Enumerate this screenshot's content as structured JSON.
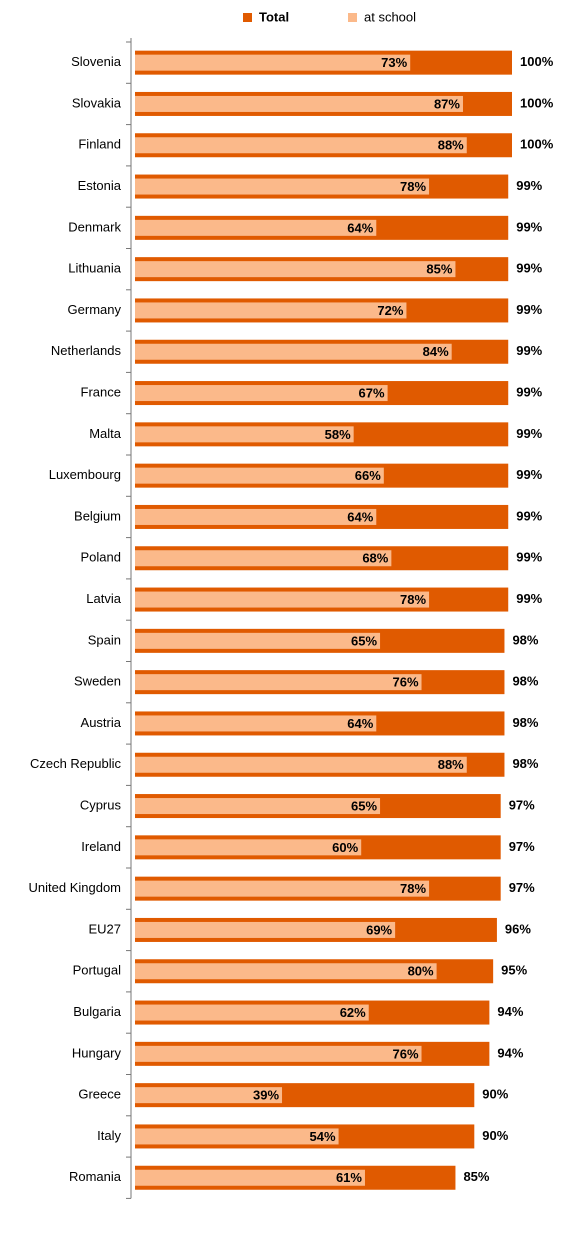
{
  "chart_data": {
    "type": "bar",
    "orientation": "horizontal",
    "overlap": true,
    "categories": [
      "Slovenia",
      "Slovakia",
      "Finland",
      "Estonia",
      "Denmark",
      "Lithuania",
      "Germany",
      "Netherlands",
      "France",
      "Malta",
      "Luxembourg",
      "Belgium",
      "Poland",
      "Latvia",
      "Spain",
      "Sweden",
      "Austria",
      "Czech Republic",
      "Cyprus",
      "Ireland",
      "United Kingdom",
      "EU27",
      "Portugal",
      "Bulgaria",
      "Hungary",
      "Greece",
      "Italy",
      "Romania"
    ],
    "xlim": [
      0,
      100
    ],
    "legend": "top",
    "series": [
      {
        "name": "Total",
        "color": "#e05a00",
        "values": [
          100,
          100,
          100,
          99,
          99,
          99,
          99,
          99,
          99,
          99,
          99,
          99,
          99,
          99,
          98,
          98,
          98,
          98,
          97,
          97,
          97,
          96,
          95,
          94,
          94,
          90,
          90,
          85
        ],
        "value_labels": [
          "100%",
          "100%",
          "100%",
          "99%",
          "99%",
          "99%",
          "99%",
          "99%",
          "99%",
          "99%",
          "99%",
          "99%",
          "99%",
          "99%",
          "98%",
          "98%",
          "98%",
          "98%",
          "97%",
          "97%",
          "97%",
          "96%",
          "95%",
          "94%",
          "94%",
          "90%",
          "90%",
          "85%"
        ]
      },
      {
        "name": "at school",
        "color": "#fbb98a",
        "values": [
          73,
          87,
          88,
          78,
          64,
          85,
          72,
          84,
          67,
          58,
          66,
          64,
          68,
          78,
          65,
          76,
          64,
          88,
          65,
          60,
          78,
          69,
          80,
          62,
          76,
          39,
          54,
          61
        ],
        "value_labels": [
          "73%",
          "87%",
          "88%",
          "78%",
          "64%",
          "85%",
          "72%",
          "84%",
          "67%",
          "58%",
          "66%",
          "64%",
          "68%",
          "78%",
          "65%",
          "76%",
          "64%",
          "88%",
          "65%",
          "60%",
          "78%",
          "69%",
          "80%",
          "62%",
          "76%",
          "39%",
          "54%",
          "61%"
        ]
      }
    ]
  }
}
